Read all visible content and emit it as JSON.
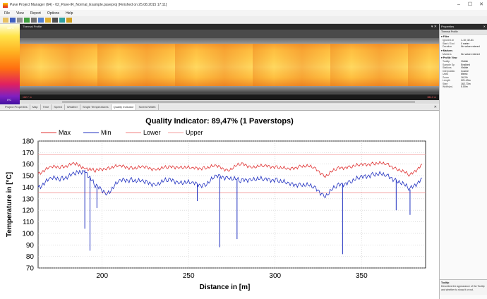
{
  "window": {
    "title": "Pave Project Manager (64) - 02_Pave-IR_Normal_Example.paveproj [Finished on 25.08.2015 17:11]",
    "minimize": "–",
    "maximize": "☐",
    "close": "✕"
  },
  "menu": [
    "File",
    "View",
    "Report",
    "Options",
    "Help"
  ],
  "toolbar_icons": [
    "open-icon",
    "save-icon",
    "grid-icon",
    "chart-icon",
    "settings-icon",
    "layers-icon",
    "edit-icon",
    "eye-icon",
    "refresh-icon",
    "filter-icon"
  ],
  "scale": {
    "top_label": "180°C",
    "bottom_label": "0°C"
  },
  "thermal_panel": {
    "title": "Thermal Profile",
    "start_label": "162.7 m",
    "end_label": "384.0 m"
  },
  "tabs": [
    {
      "label": "Project Properties"
    },
    {
      "label": "Map"
    },
    {
      "label": "Time"
    },
    {
      "label": "Speed"
    },
    {
      "label": "Weather"
    },
    {
      "label": "Single Temperatures"
    },
    {
      "label": "Quality Indicator",
      "active": true
    },
    {
      "label": "Screed Width"
    }
  ],
  "properties": {
    "title": "Properties",
    "subtitle": "Thermal Profile",
    "sections": [
      {
        "name": "Filter",
        "rows": [
          [
            "Ignored Ar",
            "1-10; 32-61"
          ],
          [
            "Start / End",
            "0 meter"
          ],
          [
            "Duration",
            "No value entered"
          ]
        ]
      },
      {
        "name": "Markers",
        "rows": [
          [
            "Markers",
            "No value entered"
          ]
        ]
      },
      {
        "name": "Profile View",
        "rows": [
          [
            "Tooltip",
            "Visible"
          ],
          [
            "Sample Sp",
            "Enabled"
          ],
          [
            "Stations",
            "Visible"
          ],
          [
            "Interpolatio",
            "Cosine"
          ],
          [
            "Units",
            "Metric"
          ],
          [
            "Zoom",
            "16.2%"
          ],
          [
            "Length",
            "221.43m"
          ],
          [
            "Start",
            "162.73m"
          ],
          [
            "Width(m)",
            "5.00m"
          ]
        ]
      }
    ],
    "description_title": "Tooltip",
    "description_text": "Describes the appearance of the Tooltip and whether to show it or not."
  },
  "chart_data": {
    "type": "line",
    "title": "Quality Indicator: 89,47% (1 Paverstops)",
    "xlabel": "Distance in [m]",
    "ylabel": "Temperature in [°C]",
    "xlim": [
      163,
      387
    ],
    "ylim": [
      70,
      180
    ],
    "xticks": [
      200,
      250,
      300,
      350
    ],
    "yticks": [
      70,
      80,
      90,
      100,
      110,
      120,
      130,
      140,
      150,
      160,
      170,
      180
    ],
    "grid": true,
    "legend_position": "top",
    "legend": [
      "Max",
      "Min",
      "Lower",
      "Upper"
    ],
    "lower_limit": 135,
    "upper_limit": 168,
    "colors": {
      "max": "#e03030",
      "min": "#2030c0",
      "lower": "#f08080",
      "upper": "#f4a0a0"
    },
    "x": [
      163,
      170,
      177,
      184,
      190,
      196,
      203,
      210,
      217,
      224,
      231,
      238,
      245,
      252,
      259,
      266,
      273,
      280,
      287,
      294,
      301,
      308,
      315,
      322,
      329,
      336,
      343,
      350,
      357,
      364,
      371,
      378,
      385
    ],
    "series": [
      {
        "name": "Max",
        "values": [
          152,
          157,
          158,
          160,
          157,
          154,
          157,
          158,
          157,
          157,
          156,
          157,
          158,
          156,
          157,
          158,
          155,
          160,
          158,
          158,
          158,
          155,
          159,
          157,
          150,
          156,
          158,
          159,
          161,
          160,
          156,
          150,
          160
        ]
      },
      {
        "name": "Min",
        "values": [
          140,
          147,
          148,
          151,
          155,
          141,
          135,
          145,
          147,
          144,
          143,
          146,
          145,
          143,
          142,
          149,
          149,
          145,
          148,
          146,
          147,
          142,
          143,
          140,
          133,
          141,
          145,
          148,
          152,
          150,
          146,
          138,
          148
        ]
      }
    ],
    "min_spikes": [
      [
        190,
        104
      ],
      [
        193,
        85
      ],
      [
        197,
        122
      ],
      [
        255,
        128
      ],
      [
        268,
        88
      ],
      [
        278,
        95
      ],
      [
        339,
        82
      ],
      [
        370,
        120
      ],
      [
        378,
        116
      ]
    ]
  }
}
